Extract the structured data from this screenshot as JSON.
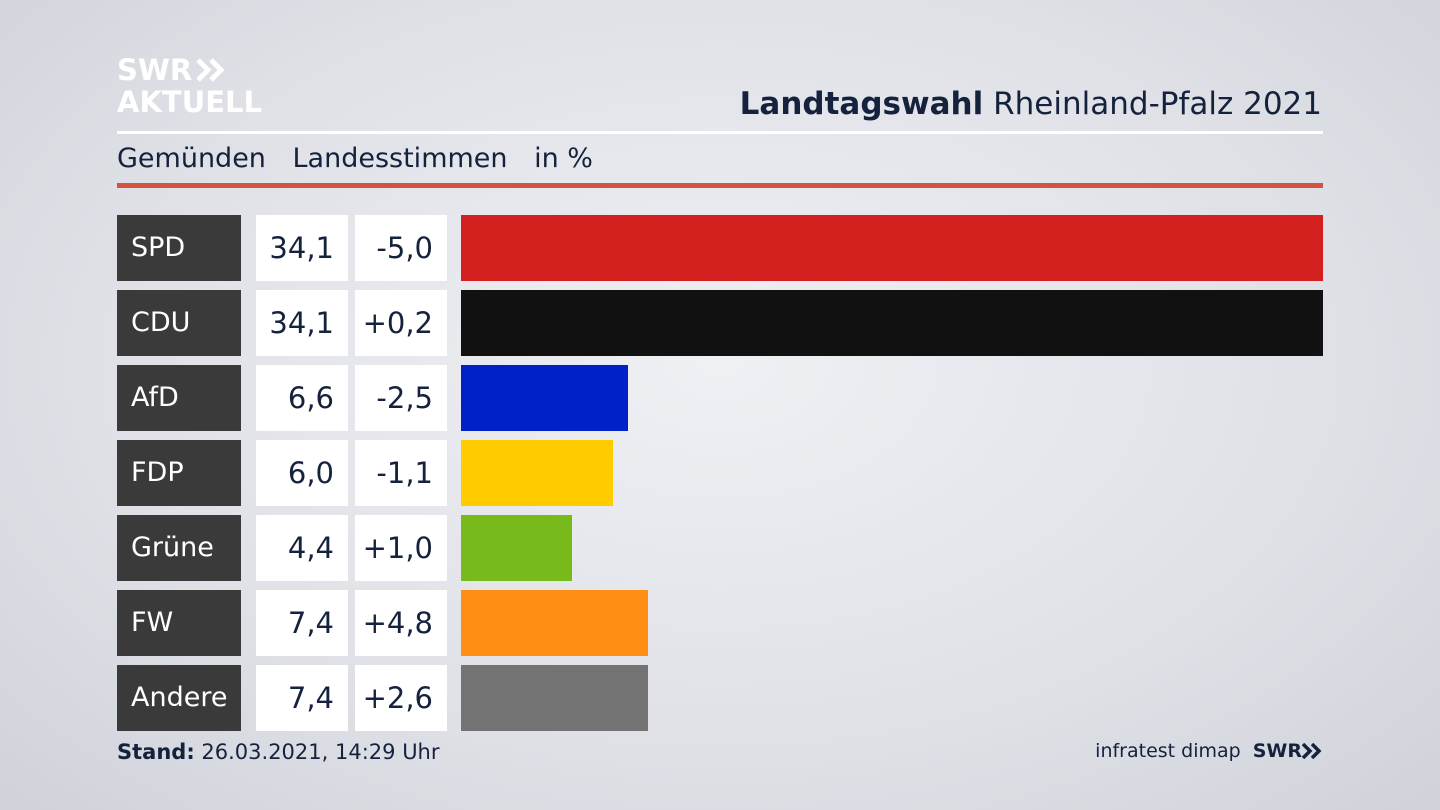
{
  "brand": {
    "logo_line1": "SWR",
    "logo_line2": "AKTUELL"
  },
  "header": {
    "title_bold": "Landtagswahl",
    "title_rest": "Rheinland-Pfalz 2021",
    "subtitle_place": "Gemünden",
    "subtitle_type": "Landesstimmen",
    "subtitle_unit": "in %"
  },
  "footer": {
    "stand_label": "Stand:",
    "stand_value": "26.03.2021, 14:29 Uhr",
    "source": "infratest dimap",
    "swr": "SWR"
  },
  "chart_data": {
    "type": "bar",
    "orientation": "horizontal",
    "categories": [
      "SPD",
      "CDU",
      "AfD",
      "FDP",
      "Grüne",
      "FW",
      "Andere"
    ],
    "values": [
      34.1,
      34.1,
      6.6,
      6.0,
      4.4,
      7.4,
      7.4
    ],
    "value_labels": [
      "34,1",
      "34,1",
      "6,6",
      "6,0",
      "4,4",
      "7,4",
      "7,4"
    ],
    "changes": [
      -5.0,
      0.2,
      -2.5,
      -1.1,
      1.0,
      4.8,
      2.6
    ],
    "change_labels": [
      "-5,0",
      "+0,2",
      "-2,5",
      "-1,1",
      "+1,0",
      "+4,8",
      "+2,6"
    ],
    "colors": [
      "#d41f1f",
      "#111111",
      "#0020c8",
      "#ffcc00",
      "#78b91b",
      "#ff8f14",
      "#737373"
    ],
    "xlim": [
      0,
      34.1
    ]
  }
}
